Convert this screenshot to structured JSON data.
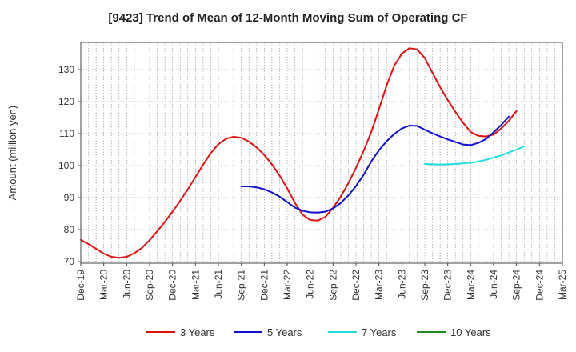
{
  "chart_data": {
    "type": "line",
    "title": "[9423]  Trend of Mean of 12-Month Moving Sum of Operating CF",
    "ylabel": "Amount (million yen)",
    "xlabel": "",
    "ylim": [
      69.5,
      138.5
    ],
    "yticks": [
      70,
      80,
      90,
      100,
      110,
      120,
      130
    ],
    "x_start": "Dec-19",
    "x_end": "Mar-25",
    "xtick_labels": [
      "Dec-19",
      "Mar-20",
      "Jun-20",
      "Sep-20",
      "Dec-20",
      "Mar-21",
      "Jun-21",
      "Sep-21",
      "Dec-21",
      "Mar-22",
      "Jun-22",
      "Sep-22",
      "Dec-22",
      "Mar-23",
      "Jun-23",
      "Sep-23",
      "Dec-23",
      "Mar-24",
      "Jun-24",
      "Sep-24",
      "Dec-24",
      "Mar-25"
    ],
    "grid": true,
    "legend_position": "bottom",
    "series": [
      {
        "name": "3 Years",
        "color": "#dd1111",
        "start_index": 0,
        "values": [
          76.8,
          75.5,
          74.0,
          72.5,
          71.5,
          71.2,
          71.5,
          72.6,
          74.3,
          76.7,
          79.5,
          82.4,
          85.6,
          89.0,
          92.6,
          96.4,
          100.3,
          103.9,
          106.7,
          108.4,
          109.0,
          108.7,
          107.5,
          105.7,
          103.3,
          100.4,
          96.9,
          92.9,
          88.4,
          84.7,
          83.0,
          82.8,
          84.0,
          86.8,
          90.3,
          94.5,
          99.3,
          104.6,
          110.5,
          117.6,
          125.0,
          131.2,
          135.0,
          136.7,
          136.3,
          133.6,
          129.0,
          124.5,
          120.5,
          116.8,
          113.4,
          110.5,
          109.3,
          109.1,
          109.7,
          111.6,
          114.0,
          117.1
        ]
      },
      {
        "name": "5 Years",
        "color": "#1010cc",
        "start_index": 21,
        "values": [
          93.5,
          93.5,
          93.2,
          92.6,
          91.6,
          90.3,
          88.6,
          86.9,
          85.9,
          85.4,
          85.3,
          85.6,
          86.6,
          88.3,
          90.7,
          93.6,
          97.1,
          101.3,
          104.8,
          107.6,
          109.9,
          111.6,
          112.5,
          112.4,
          111.2,
          110.1,
          109.1,
          108.2,
          107.4,
          106.6,
          106.4,
          107.1,
          108.3,
          110.4,
          112.7,
          115.3
        ]
      },
      {
        "name": "7 Years",
        "color": "#22dddd",
        "start_index": 45,
        "values": [
          100.5,
          100.4,
          100.3,
          100.4,
          100.5,
          100.7,
          100.9,
          101.3,
          101.8,
          102.5,
          103.2,
          104.1,
          105.0,
          106.0
        ]
      },
      {
        "name": "10 Years",
        "color": "#228822",
        "start_index": 0,
        "values": []
      }
    ]
  }
}
